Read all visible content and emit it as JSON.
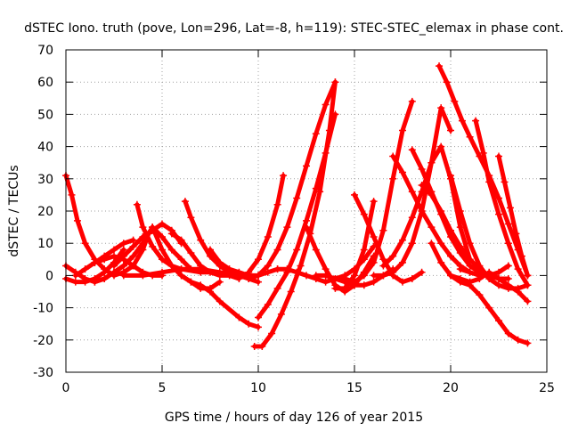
{
  "chart_data": {
    "type": "scatter",
    "title": "dSTEC Iono. truth (pove, Lon=296, Lat=-8, h=119): STEC-STEC_elemax in phase cont.",
    "xlabel": "GPS time / hours of day 126 of year 2015",
    "ylabel": "dSTEC  / TECUs",
    "xlim": [
      0,
      25
    ],
    "ylim": [
      -30,
      70
    ],
    "xticks": [
      0,
      5,
      10,
      15,
      20,
      25
    ],
    "yticks": [
      -30,
      -20,
      -10,
      0,
      10,
      20,
      30,
      40,
      50,
      60,
      70
    ],
    "xtick_labels": [
      "0",
      "5",
      "10",
      "15",
      "20",
      "25"
    ],
    "ytick_labels": [
      "-30",
      "-20",
      "-10",
      "0",
      "10",
      "20",
      "30",
      "40",
      "50",
      "60",
      "70"
    ],
    "grid": true,
    "legend": "none",
    "marker": "+",
    "color": "#ff0000",
    "series": [
      {
        "x": [
          0.0,
          0.3,
          0.6,
          1.0,
          1.5,
          2.0,
          2.5,
          3.0,
          3.5,
          4.0,
          4.3
        ],
        "y": [
          31,
          25,
          17,
          10,
          5,
          2,
          0,
          1,
          3,
          8,
          13
        ]
      },
      {
        "x": [
          0.0,
          0.5,
          1.0,
          1.5,
          2.0,
          2.5,
          3.0
        ],
        "y": [
          3,
          1,
          -1,
          -2,
          -1,
          1,
          3
        ]
      },
      {
        "x": [
          0.0,
          0.5,
          1.0,
          1.5,
          2.0,
          2.5,
          3.0
        ],
        "y": [
          -1,
          -2,
          -2,
          -1,
          1,
          4,
          8
        ]
      },
      {
        "x": [
          0.5,
          1.0,
          1.5,
          2.0,
          2.5,
          3.0,
          3.5,
          4.0,
          4.5,
          5.0
        ],
        "y": [
          0,
          2,
          4,
          5,
          6,
          5,
          3,
          1,
          0,
          0
        ]
      },
      {
        "x": [
          1.5,
          2.0,
          2.5,
          3.0,
          3.5,
          4.0,
          4.5
        ],
        "y": [
          -2,
          -1,
          1,
          3,
          6,
          10,
          15
        ]
      },
      {
        "x": [
          1.5,
          2.0,
          2.5,
          3.0,
          3.5
        ],
        "y": [
          4,
          6,
          8,
          10,
          11
        ]
      },
      {
        "x": [
          2.5,
          3.0,
          3.5,
          4.0,
          4.5,
          5.0,
          5.5,
          6.0
        ],
        "y": [
          3,
          6,
          9,
          12,
          14,
          16,
          14,
          10
        ]
      },
      {
        "x": [
          3.7,
          4.0,
          4.5,
          5.0,
          5.5,
          6.0,
          7.0,
          8.0,
          9.0
        ],
        "y": [
          22,
          15,
          9,
          5,
          3,
          2,
          1,
          1,
          0
        ]
      },
      {
        "x": [
          3.0,
          4.0,
          5.0,
          6.0,
          7.0,
          8.0
        ],
        "y": [
          0,
          0,
          1,
          2,
          2,
          1
        ]
      },
      {
        "x": [
          4.5,
          5.0,
          5.5,
          6.0,
          6.5
        ],
        "y": [
          15,
          12,
          8,
          5,
          2
        ]
      },
      {
        "x": [
          5.5,
          6.0,
          6.5,
          7.0,
          7.5,
          8.0,
          8.5,
          9.0
        ],
        "y": [
          13,
          11,
          7,
          3,
          1,
          0,
          0,
          -1
        ]
      },
      {
        "x": [
          6.2,
          6.5,
          7.0,
          7.5,
          8.0,
          8.5,
          9.0,
          9.5,
          10.0
        ],
        "y": [
          23,
          18,
          11,
          6,
          3,
          1,
          0,
          -1,
          -2
        ]
      },
      {
        "x": [
          4.5,
          5.0,
          5.5,
          6.0,
          6.5,
          7.0,
          7.5,
          8.0,
          9.0,
          9.5,
          10.0
        ],
        "y": [
          15,
          8,
          3,
          0,
          -2,
          -3,
          -5,
          -8,
          -13,
          -15,
          -16
        ]
      },
      {
        "x": [
          5.5,
          6.0,
          6.5,
          7.0,
          7.5,
          8.0
        ],
        "y": [
          3,
          0,
          -2,
          -4,
          -4,
          -2
        ]
      },
      {
        "x": [
          7.5,
          8.0,
          8.5,
          9.0,
          9.5,
          10.0,
          10.5,
          11.0
        ],
        "y": [
          8,
          4,
          2,
          1,
          0,
          0,
          1,
          2
        ]
      },
      {
        "x": [
          10.0,
          10.5,
          11.0,
          11.5,
          12.0,
          12.5,
          13.0,
          13.5,
          14.0
        ],
        "y": [
          -13,
          -9,
          -4,
          1,
          8,
          17,
          27,
          38,
          50
        ]
      },
      {
        "x": [
          9.8,
          10.2,
          10.7,
          11.2,
          11.7,
          12.2,
          12.7,
          13.2,
          13.7,
          14.0
        ],
        "y": [
          -22,
          -22,
          -18,
          -12,
          -5,
          3,
          13,
          26,
          45,
          60
        ]
      },
      {
        "x": [
          9.5,
          10.0,
          10.5,
          11.0,
          11.3
        ],
        "y": [
          1,
          5,
          12,
          22,
          31
        ]
      },
      {
        "x": [
          9.5,
          10.0,
          10.5,
          11.0,
          11.5,
          12.0,
          12.5,
          13.0,
          13.5,
          14.0
        ],
        "y": [
          -1,
          0,
          3,
          8,
          15,
          24,
          34,
          44,
          53,
          60
        ]
      },
      {
        "x": [
          11.0,
          11.5,
          12.0,
          12.5,
          13.0,
          13.5,
          14.0,
          14.5,
          15.0,
          15.5,
          16.0
        ],
        "y": [
          2,
          2,
          1,
          0,
          -1,
          -2,
          -1,
          0,
          2,
          5,
          9
        ]
      },
      {
        "x": [
          12.5,
          13.0,
          13.5,
          14.0,
          14.5,
          15.0,
          15.5,
          16.0
        ],
        "y": [
          15,
          8,
          2,
          -3,
          -5,
          -3,
          1,
          6
        ]
      },
      {
        "x": [
          13.0,
          13.5,
          14.0,
          14.5,
          15.0,
          15.5,
          16.0,
          16.5,
          17.0
        ],
        "y": [
          0,
          0,
          -1,
          -2,
          -3,
          -3,
          -2,
          0,
          2
        ]
      },
      {
        "x": [
          14.0,
          14.5,
          15.0,
          15.5,
          16.0
        ],
        "y": [
          -4,
          -4,
          0,
          8,
          23
        ]
      },
      {
        "x": [
          14.5,
          15.0,
          15.5,
          16.0,
          16.5,
          17.0,
          17.5,
          18.0
        ],
        "y": [
          -1,
          -2,
          0,
          4,
          14,
          30,
          45,
          54
        ]
      },
      {
        "x": [
          15.0,
          15.5,
          16.0,
          16.5,
          17.0,
          17.5,
          18.0,
          18.5
        ],
        "y": [
          25,
          19,
          12,
          5,
          0,
          -2,
          -1,
          1
        ]
      },
      {
        "x": [
          16.0,
          16.5,
          17.0,
          17.5,
          18.0,
          18.5,
          19.0,
          19.5,
          20.0
        ],
        "y": [
          0,
          0,
          1,
          4,
          10,
          20,
          35,
          52,
          45
        ]
      },
      {
        "x": [
          16.5,
          17.0,
          17.5,
          18.0,
          18.5,
          19.0,
          19.5,
          20.0,
          20.5,
          21.0
        ],
        "y": [
          3,
          6,
          11,
          18,
          26,
          35,
          40,
          30,
          15,
          5
        ]
      },
      {
        "x": [
          17.0,
          17.5,
          18.0,
          18.5,
          19.0,
          19.5,
          20.0,
          20.5,
          21.0
        ],
        "y": [
          37,
          32,
          26,
          20,
          15,
          10,
          6,
          3,
          1
        ]
      },
      {
        "x": [
          18.0,
          18.5,
          19.0,
          19.5,
          20.0,
          20.5,
          21.0,
          21.5,
          22.0
        ],
        "y": [
          39,
          33,
          26,
          19,
          12,
          7,
          3,
          1,
          0
        ]
      },
      {
        "x": [
          18.5,
          19.0,
          19.5,
          20.0,
          20.5,
          21.0,
          21.5,
          22.0,
          22.5,
          23.0
        ],
        "y": [
          28,
          25,
          20,
          14,
          9,
          5,
          2,
          0,
          -1,
          -1
        ]
      },
      {
        "x": [
          19.4,
          19.8,
          20.2,
          20.6,
          21.0,
          21.5,
          22.0,
          22.5,
          23.0,
          23.5,
          24.0
        ],
        "y": [
          65,
          60,
          54,
          48,
          43,
          37,
          31,
          24,
          16,
          8,
          0
        ]
      },
      {
        "x": [
          20.0,
          20.5,
          21.0,
          21.5,
          22.0,
          22.5,
          23.0,
          23.5,
          24.0
        ],
        "y": [
          31,
          20,
          10,
          3,
          -1,
          -3,
          -4,
          -4,
          -3
        ]
      },
      {
        "x": [
          21.3,
          21.7,
          22.0,
          22.5,
          23.0,
          23.5,
          24.0
        ],
        "y": [
          48,
          38,
          29,
          19,
          10,
          2,
          -3
        ]
      },
      {
        "x": [
          22.5,
          22.8,
          23.1,
          23.4,
          23.7,
          24.0
        ],
        "y": [
          37,
          29,
          21,
          13,
          6,
          0
        ]
      },
      {
        "x": [
          19.0,
          19.5,
          20.0,
          20.5,
          21.0,
          21.5,
          22.0,
          22.5,
          23.0,
          23.5,
          24.0
        ],
        "y": [
          10,
          4,
          0,
          -2,
          -3,
          -6,
          -10,
          -14,
          -18,
          -20,
          -21
        ]
      },
      {
        "x": [
          20.0,
          20.5,
          21.0,
          21.5,
          22.0,
          22.5,
          23.0,
          23.5,
          24.0
        ],
        "y": [
          0,
          -1,
          -2,
          -1,
          1,
          -1,
          -3,
          -5,
          -8
        ]
      },
      {
        "x": [
          20.5,
          21.0,
          21.5,
          22.0,
          22.5,
          23.0
        ],
        "y": [
          2,
          1,
          0,
          0,
          1,
          3
        ]
      }
    ]
  }
}
